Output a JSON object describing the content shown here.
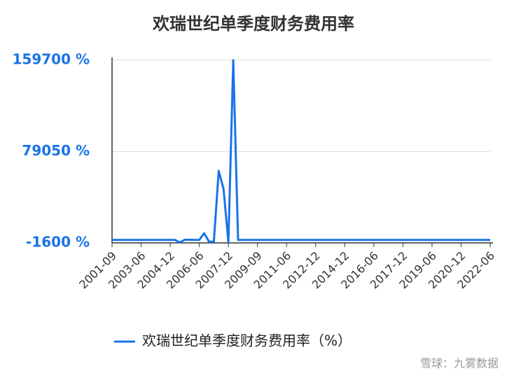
{
  "chart_data": {
    "type": "line",
    "title": "欢瑞世纪单季度财务费用率",
    "categories": [
      "2001-09",
      null,
      null,
      null,
      null,
      null,
      "2003-06",
      null,
      null,
      null,
      null,
      null,
      "2004-12",
      null,
      null,
      null,
      null,
      null,
      "2006-06",
      null,
      null,
      null,
      null,
      null,
      "2007-12",
      null,
      null,
      null,
      null,
      null,
      "2009-09",
      null,
      null,
      null,
      null,
      null,
      "2011-06",
      null,
      null,
      null,
      null,
      null,
      "2012-12",
      null,
      null,
      null,
      null,
      null,
      "2014-12",
      null,
      null,
      null,
      null,
      null,
      "2016-06",
      null,
      null,
      null,
      null,
      null,
      "2017-12",
      null,
      null,
      null,
      null,
      null,
      "2019-06",
      null,
      null,
      null,
      null,
      null,
      "2020-12",
      null,
      null,
      null,
      null,
      null,
      "2022-06"
    ],
    "series": [
      {
        "name": "欢瑞世纪单季度财务费用率（%）",
        "color": "#1a73e8",
        "values": [
          1000,
          1000,
          1000,
          1000,
          1000,
          1000,
          1000,
          1000,
          1000,
          1000,
          1000,
          1000,
          1000,
          1000,
          -1200,
          1200,
          1200,
          1000,
          1000,
          7000,
          -500,
          -500,
          62000,
          46000,
          -1000,
          159700,
          1000,
          1000,
          1000,
          1000,
          1000,
          1000,
          1000,
          1000,
          1000,
          1000,
          1000,
          1000,
          1000,
          1000,
          1000,
          1000,
          1000,
          1000,
          1000,
          1000,
          1000,
          1000,
          1000,
          1000,
          1000,
          1000,
          1000,
          1000,
          1000,
          1000,
          1000,
          1000,
          1000,
          1000,
          1000,
          1000,
          1000,
          1000,
          1000,
          1000,
          1000,
          1000,
          1000,
          1000,
          1000,
          1000,
          1000,
          1000,
          1000,
          1000,
          1000,
          1000,
          1000
        ]
      }
    ],
    "ylim": [
      -1600,
      159700
    ],
    "yticks": [
      {
        "value": -1600,
        "label": "-1600 %"
      },
      {
        "value": 79050,
        "label": "79050 %"
      },
      {
        "value": 159700,
        "label": "159700 %"
      }
    ],
    "grid": true,
    "watermark": "雪球：九雾数据"
  }
}
